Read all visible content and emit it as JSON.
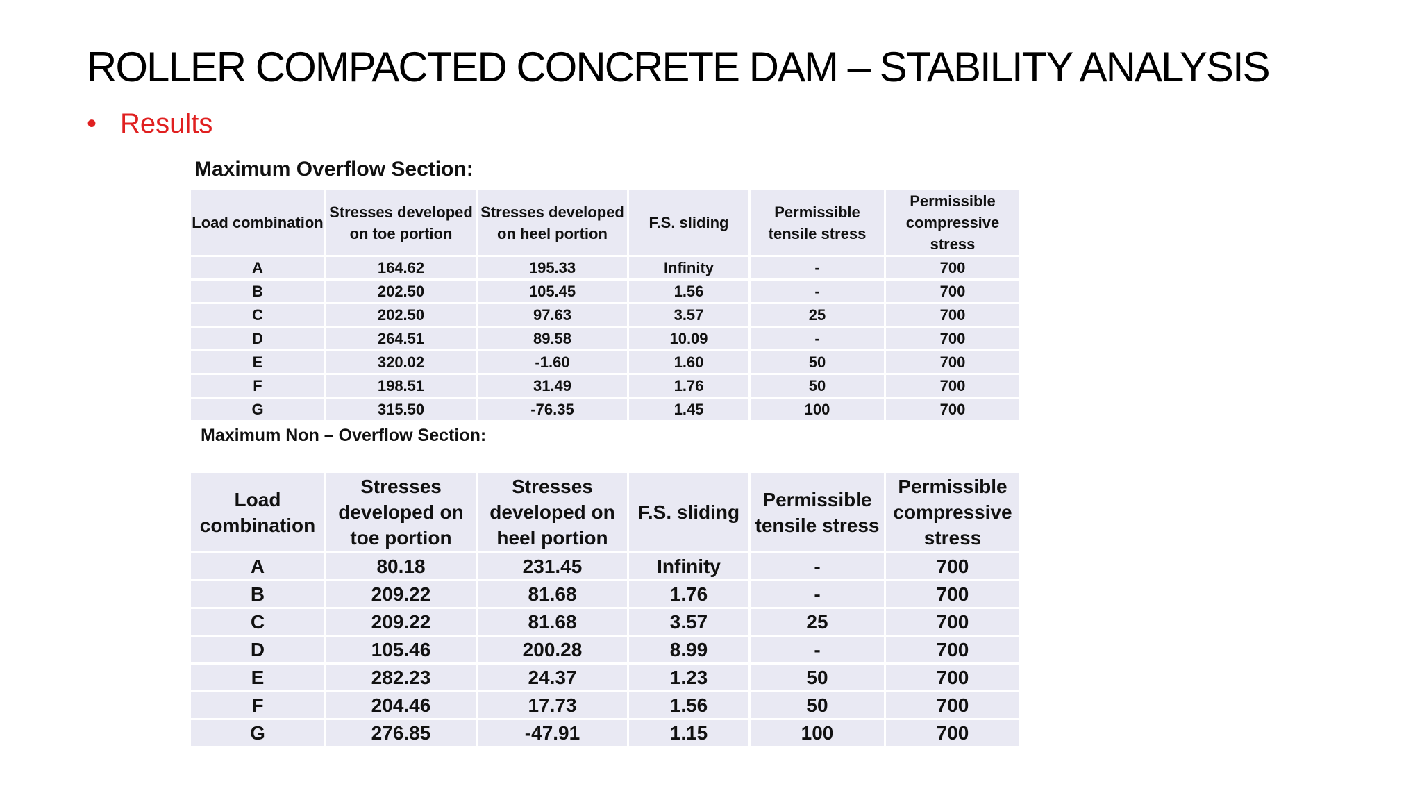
{
  "slide": {
    "title": "ROLLER COMPACTED CONCRETE DAM – STABILITY ANALYSIS",
    "bullet_mark": "•",
    "bullet": "Results"
  },
  "overflow": {
    "heading": "Maximum Overflow Section:",
    "headers": [
      "Load combination",
      "Stresses developed on toe portion",
      "Stresses developed on heel portion",
      "F.S. sliding",
      "Permissible tensile stress",
      "Permissible compressive stress"
    ],
    "rows": [
      [
        "A",
        "164.62",
        "195.33",
        "Infinity",
        "-",
        "700"
      ],
      [
        "B",
        "202.50",
        "105.45",
        "1.56",
        "-",
        "700"
      ],
      [
        "C",
        "202.50",
        "97.63",
        "3.57",
        "25",
        "700"
      ],
      [
        "D",
        "264.51",
        "89.58",
        "10.09",
        "-",
        "700"
      ],
      [
        "E",
        "320.02",
        "-1.60",
        "1.60",
        "50",
        "700"
      ],
      [
        "F",
        "198.51",
        "31.49",
        "1.76",
        "50",
        "700"
      ],
      [
        "G",
        "315.50",
        "-76.35",
        "1.45",
        "100",
        "700"
      ]
    ]
  },
  "nonoverflow": {
    "heading": "Maximum Non – Overflow Section:",
    "headers": [
      "Load combination",
      "Stresses developed on toe portion",
      "Stresses developed on heel portion",
      "F.S. sliding",
      "Permissible tensile stress",
      "Permissible compressive stress"
    ],
    "rows": [
      [
        "A",
        "80.18",
        "231.45",
        "Infinity",
        "-",
        "700"
      ],
      [
        "B",
        "209.22",
        "81.68",
        "1.76",
        "-",
        "700"
      ],
      [
        "C",
        "209.22",
        "81.68",
        "3.57",
        "25",
        "700"
      ],
      [
        "D",
        "105.46",
        "200.28",
        "8.99",
        "-",
        "700"
      ],
      [
        "E",
        "282.23",
        "24.37",
        "1.23",
        "50",
        "700"
      ],
      [
        "F",
        "204.46",
        "17.73",
        "1.56",
        "50",
        "700"
      ],
      [
        "G",
        "276.85",
        "-47.91",
        "1.15",
        "100",
        "700"
      ]
    ]
  }
}
